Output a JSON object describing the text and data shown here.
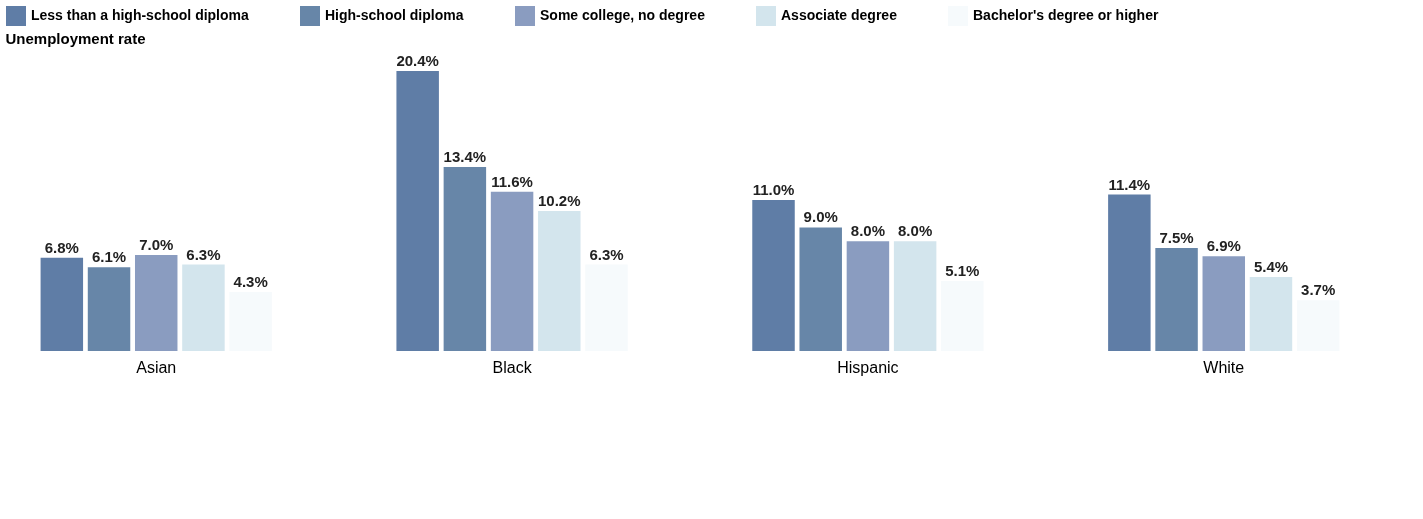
{
  "chart_data": {
    "type": "bar",
    "ylabel": "Unemployment rate",
    "categories": [
      "Asian",
      "Black",
      "Hispanic",
      "White"
    ],
    "legend": "top",
    "series": [
      {
        "name": "Less than a high-school diploma",
        "color": "#5f7da6",
        "values": [
          6.8,
          20.4,
          11.0,
          11.4
        ],
        "value_labels": [
          "6.8%",
          "20.4%",
          "11.0%",
          "11.4%"
        ]
      },
      {
        "name": "High-school diploma",
        "color": "#6786a8",
        "values": [
          6.1,
          13.4,
          9.0,
          7.5
        ],
        "value_labels": [
          "6.1%",
          "13.4%",
          "9.0%",
          "7.5%"
        ]
      },
      {
        "name": "Some college, no degree",
        "color": "#8a9cc0",
        "values": [
          7.0,
          11.6,
          8.0,
          6.9
        ],
        "value_labels": [
          "7.0%",
          "11.6%",
          "8.0%",
          "6.9%"
        ]
      },
      {
        "name": "Associate degree",
        "color": "#d3e5ed",
        "values": [
          6.3,
          10.2,
          8.0,
          5.4
        ],
        "value_labels": [
          "6.3%",
          "10.2%",
          "8.0%",
          "5.4%"
        ]
      },
      {
        "name": "Bachelor's degree or higher",
        "color": "#f6fafc",
        "values": [
          4.3,
          6.3,
          5.1,
          3.7
        ],
        "value_labels": [
          "4.3%",
          "6.3%",
          "5.1%",
          "3.7%"
        ]
      }
    ]
  }
}
